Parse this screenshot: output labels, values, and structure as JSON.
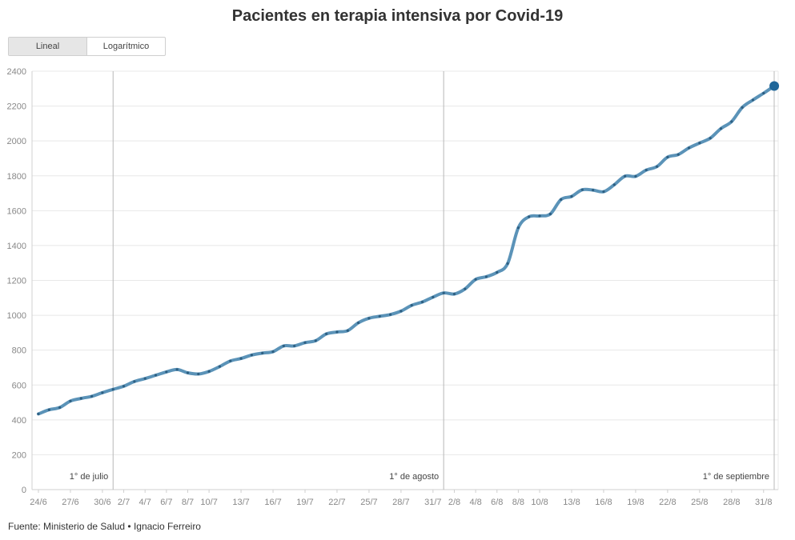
{
  "header": {
    "title": "Pacientes en terapia intensiva por Covid-19"
  },
  "toggle": {
    "options": [
      "Lineal",
      "Logarítmico"
    ],
    "active": "Lineal"
  },
  "footer": {
    "source": "Fuente: Ministerio de Salud • Ignacio Ferreiro"
  },
  "colors": {
    "line": "#5b93b8",
    "dots": "#2d5f82",
    "last_point": "#1f6699",
    "grid": "#e8e8e8",
    "annotation": "#b8b8b8"
  },
  "chart_data": {
    "type": "line",
    "title": "Pacientes en terapia intensiva por Covid-19",
    "scale": "linear",
    "x_start": "24/6",
    "ylim": [
      0,
      2400
    ],
    "yticks": [
      0,
      200,
      400,
      600,
      800,
      1000,
      1200,
      1400,
      1600,
      1800,
      2000,
      2200,
      2400
    ],
    "xtick_labels": [
      "24/6",
      "27/6",
      "30/6",
      "2/7",
      "4/7",
      "6/7",
      "8/7",
      "10/7",
      "13/7",
      "16/7",
      "19/7",
      "22/7",
      "25/7",
      "28/7",
      "31/7",
      "2/8",
      "4/8",
      "6/8",
      "8/8",
      "10/8",
      "13/8",
      "16/8",
      "19/8",
      "22/8",
      "25/8",
      "28/8",
      "31/8"
    ],
    "xtick_day_index": [
      0,
      3,
      6,
      8,
      10,
      12,
      14,
      16,
      19,
      22,
      25,
      28,
      31,
      34,
      37,
      39,
      41,
      43,
      45,
      47,
      50,
      53,
      56,
      59,
      62,
      65,
      68
    ],
    "annotations": [
      {
        "label": "1° de julio",
        "day_index": 7
      },
      {
        "label": "1° de agosto",
        "day_index": 38
      },
      {
        "label": "1° de septiembre",
        "day_index": 69
      }
    ],
    "grid": true,
    "series": [
      {
        "values": [
          434,
          458,
          471,
          508,
          523,
          535,
          556,
          575,
          593,
          620,
          637,
          656,
          675,
          689,
          670,
          663,
          678,
          706,
          738,
          752,
          772,
          783,
          791,
          824,
          824,
          843,
          854,
          893,
          904,
          912,
          957,
          983,
          994,
          1004,
          1024,
          1057,
          1076,
          1104,
          1128,
          1122,
          1151,
          1206,
          1221,
          1246,
          1297,
          1502,
          1565,
          1570,
          1581,
          1664,
          1682,
          1720,
          1718,
          1709,
          1749,
          1798,
          1797,
          1833,
          1853,
          1907,
          1922,
          1960,
          1988,
          2016,
          2071,
          2111,
          2192,
          2235,
          2274,
          2315
        ]
      }
    ]
  }
}
